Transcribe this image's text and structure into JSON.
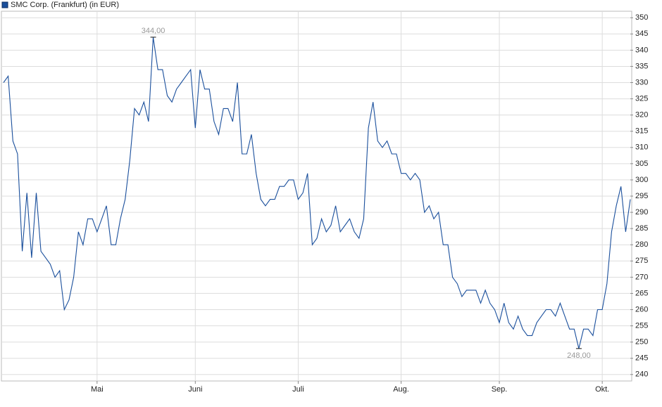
{
  "chart_data": {
    "type": "line",
    "categories": [
      null,
      null,
      null,
      null,
      null,
      null,
      null,
      null,
      null,
      null,
      null,
      null,
      null,
      null,
      null,
      null,
      null,
      null,
      null,
      null,
      "Mai",
      null,
      null,
      null,
      null,
      null,
      null,
      null,
      null,
      null,
      null,
      null,
      null,
      null,
      null,
      null,
      null,
      null,
      null,
      null,
      null,
      "Juni",
      null,
      null,
      null,
      null,
      null,
      null,
      null,
      null,
      null,
      null,
      null,
      null,
      null,
      null,
      null,
      null,
      null,
      null,
      null,
      null,
      null,
      "Juli",
      null,
      null,
      null,
      null,
      null,
      null,
      null,
      null,
      null,
      null,
      null,
      null,
      null,
      null,
      null,
      null,
      null,
      null,
      null,
      null,
      null,
      "Aug.",
      null,
      null,
      null,
      null,
      null,
      null,
      null,
      null,
      null,
      null,
      null,
      null,
      null,
      null,
      null,
      null,
      null,
      null,
      null,
      null,
      "Sep.",
      null,
      null,
      null,
      null,
      null,
      null,
      null,
      null,
      null,
      null,
      null,
      null,
      null,
      null,
      null,
      null,
      null,
      null,
      null,
      null,
      null,
      "Okt.",
      null,
      null,
      null,
      null,
      null,
      null
    ],
    "series": [
      {
        "name": "SMC Corp. (Frankfurt) (in EUR)",
        "color": "#1a4f9c",
        "values": [
          330,
          332,
          312,
          308,
          278,
          296,
          276,
          296,
          278,
          276,
          274,
          270,
          272,
          260,
          263,
          270,
          284,
          280,
          288,
          288,
          284,
          288,
          292,
          280,
          280,
          288,
          294,
          306,
          322,
          320,
          324,
          318,
          344,
          334,
          334,
          326,
          324,
          328,
          330,
          332,
          334,
          316,
          334,
          328,
          328,
          318,
          314,
          322,
          322,
          318,
          330,
          308,
          308,
          314,
          302,
          294,
          292,
          294,
          294,
          298,
          298,
          300,
          300,
          294,
          296,
          302,
          280,
          282,
          288,
          284,
          286,
          292,
          284,
          286,
          288,
          284,
          282,
          288,
          316,
          324,
          312,
          310,
          312,
          308,
          308,
          302,
          302,
          300,
          302,
          300,
          290,
          292,
          288,
          290,
          280,
          280,
          270,
          268,
          264,
          266,
          266,
          266,
          262,
          266,
          262,
          260,
          256,
          262,
          256,
          254,
          258,
          254,
          252,
          252,
          256,
          258,
          260,
          260,
          258,
          262,
          258,
          254,
          254,
          248,
          254,
          254,
          252,
          260,
          260,
          268,
          284,
          292,
          298,
          284,
          294
        ]
      }
    ],
    "annotations": [
      {
        "value": 344,
        "label": "344,00"
      },
      {
        "value": 248,
        "label": "248,00"
      }
    ],
    "ylim": [
      238,
      352
    ],
    "yticks": [
      240,
      245,
      250,
      255,
      260,
      265,
      270,
      275,
      280,
      285,
      290,
      295,
      300,
      305,
      310,
      315,
      320,
      325,
      330,
      335,
      340,
      345,
      350
    ],
    "grid": true
  }
}
